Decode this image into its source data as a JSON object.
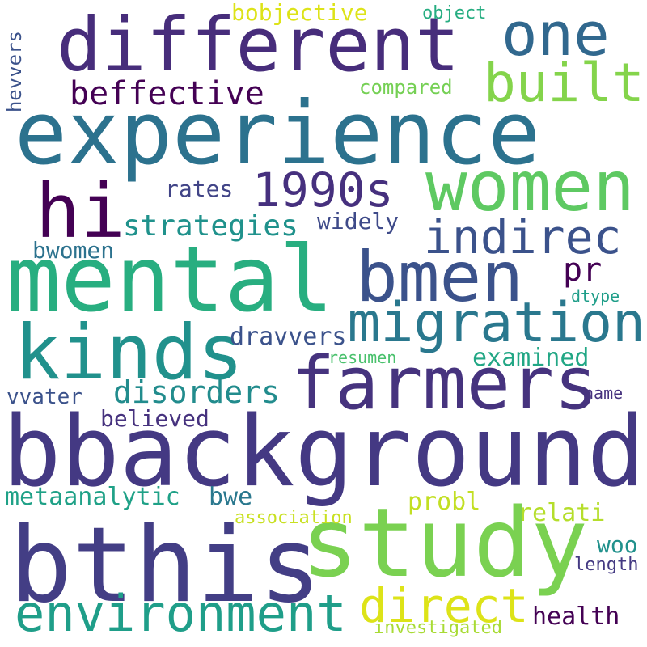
{
  "cloud": {
    "words": [
      {
        "text": "experience",
        "color": "#2c728e"
      },
      {
        "text": "bbackground",
        "color": "#443983"
      },
      {
        "text": "bthis",
        "color": "#433e85"
      },
      {
        "text": "mental",
        "color": "#28ae80"
      },
      {
        "text": "different",
        "color": "#472d7b"
      },
      {
        "text": "study",
        "color": "#7ad151"
      },
      {
        "text": "women",
        "color": "#5ec962"
      },
      {
        "text": "bmen",
        "color": "#3b528b"
      },
      {
        "text": "farmers",
        "color": "#46337e"
      },
      {
        "text": "kinds",
        "color": "#21918c"
      },
      {
        "text": "one",
        "color": "#31688e"
      },
      {
        "text": "migration",
        "color": "#2a788e"
      },
      {
        "text": "environment",
        "color": "#1f9e89"
      },
      {
        "text": "hi",
        "color": "#440154"
      },
      {
        "text": "built",
        "color": "#84d44b"
      },
      {
        "text": "1990s",
        "color": "#46307e"
      },
      {
        "text": "indirec",
        "color": "#3b528b"
      },
      {
        "text": "direct",
        "color": "#dde318"
      },
      {
        "text": "beffective",
        "color": "#440154"
      },
      {
        "text": "strategies",
        "color": "#20928c"
      },
      {
        "text": "disorders",
        "color": "#228c8d"
      },
      {
        "text": "bobjective",
        "color": "#dde318"
      },
      {
        "text": "metaanalytic",
        "color": "#1fa187"
      },
      {
        "text": "compared",
        "color": "#75d054"
      },
      {
        "text": "examined",
        "color": "#22a785"
      },
      {
        "text": "dravvers",
        "color": "#3b528b"
      },
      {
        "text": "widely",
        "color": "#3e4a89"
      },
      {
        "text": "rates",
        "color": "#414487"
      },
      {
        "text": "believed",
        "color": "#46327e"
      },
      {
        "text": "bwomen",
        "color": "#2c728e"
      },
      {
        "text": "vvater",
        "color": "#3b528b"
      },
      {
        "text": "pr",
        "color": "#440154"
      },
      {
        "text": "probl",
        "color": "#c2df23"
      },
      {
        "text": "relati",
        "color": "#b5de2b"
      },
      {
        "text": "bwe",
        "color": "#2a788e"
      },
      {
        "text": "association",
        "color": "#c8e020"
      },
      {
        "text": "health",
        "color": "#440154"
      },
      {
        "text": "woo",
        "color": "#21918c"
      },
      {
        "text": "investigated",
        "color": "#a8db34"
      },
      {
        "text": "length",
        "color": "#443a83"
      },
      {
        "text": "object",
        "color": "#26ad81"
      },
      {
        "text": "hevvers",
        "color": "#3b528b"
      },
      {
        "text": "name",
        "color": "#46327e"
      },
      {
        "text": "dtype",
        "color": "#1f9e89"
      },
      {
        "text": "resumen",
        "color": "#4ac16d"
      }
    ]
  }
}
